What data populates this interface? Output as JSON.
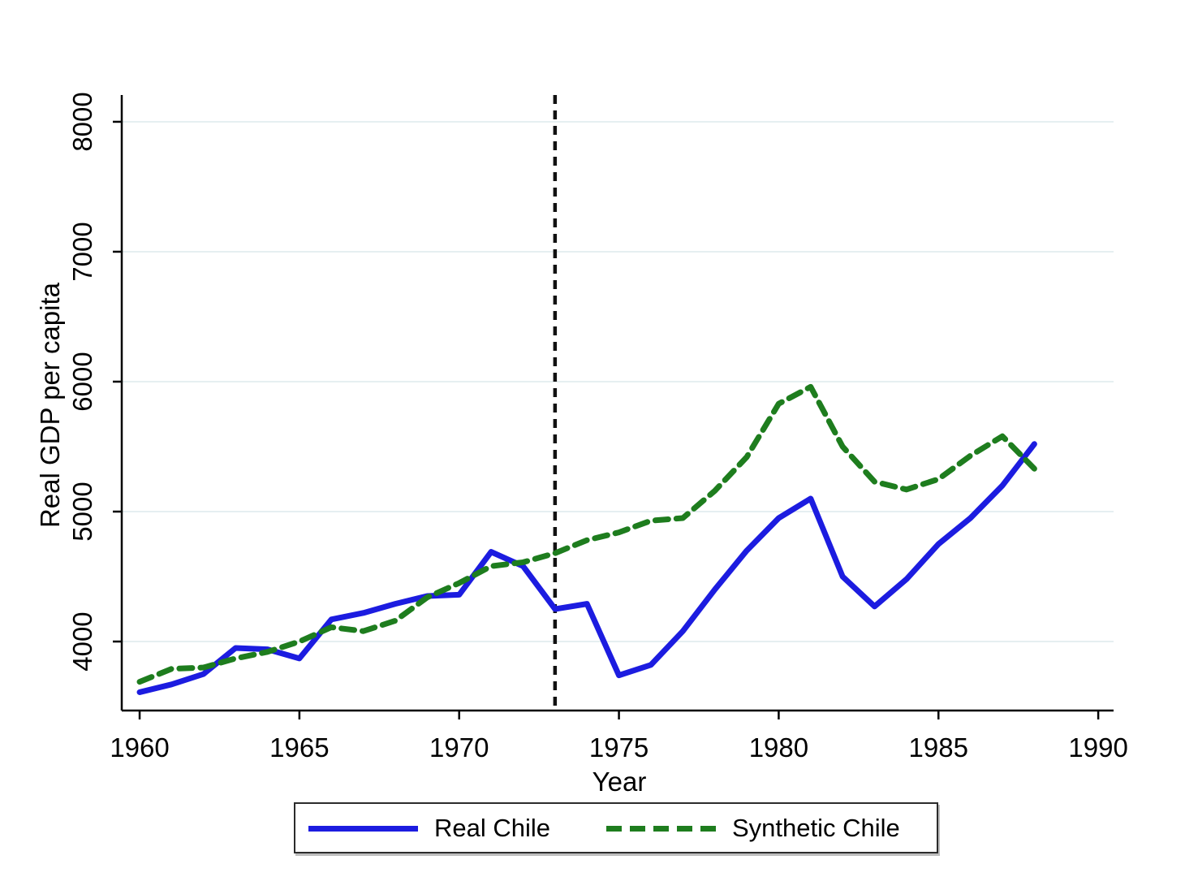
{
  "chart_data": {
    "type": "line",
    "title": "",
    "xlabel": "Year",
    "ylabel": "Real GDP per capita",
    "xlim": [
      1959.44,
      1990.48
    ],
    "ylim": [
      3469,
      8206
    ],
    "xticks": [
      1960,
      1965,
      1970,
      1975,
      1980,
      1985,
      1990
    ],
    "yticks": [
      4000,
      5000,
      6000,
      7000,
      8000
    ],
    "grid": "horizontal",
    "legend_position": "bottom-box",
    "vline_x": 1973,
    "x": [
      1960,
      1961,
      1962,
      1963,
      1964,
      1965,
      1966,
      1967,
      1968,
      1969,
      1970,
      1971,
      1972,
      1973,
      1974,
      1975,
      1976,
      1977,
      1978,
      1979,
      1980,
      1981,
      1982,
      1983,
      1984,
      1985,
      1986,
      1987,
      1988
    ],
    "series": [
      {
        "name": "Real Chile",
        "style": "solid",
        "color": "#1c1ce0",
        "values": [
          3610,
          3670,
          3750,
          3950,
          3940,
          3870,
          4170,
          4220,
          4290,
          4350,
          4360,
          4690,
          4580,
          4250,
          4290,
          3740,
          3820,
          4080,
          4400,
          4700,
          4950,
          5100,
          4500,
          4270,
          4480,
          4750,
          4950,
          5200,
          5520
        ]
      },
      {
        "name": "Synthetic Chile",
        "style": "dashed",
        "color": "#1e7d1e",
        "values": [
          3690,
          3790,
          3800,
          3870,
          3920,
          4000,
          4110,
          4080,
          4160,
          4340,
          4450,
          4580,
          4610,
          4680,
          4780,
          4840,
          4930,
          4950,
          5160,
          5420,
          5830,
          5960,
          5500,
          5230,
          5170,
          5250,
          5430,
          5580,
          5330
        ]
      }
    ],
    "colors": {
      "grid": "#e6eff1",
      "axis": "#000000",
      "vline": "#111111",
      "text": "#000000"
    }
  }
}
